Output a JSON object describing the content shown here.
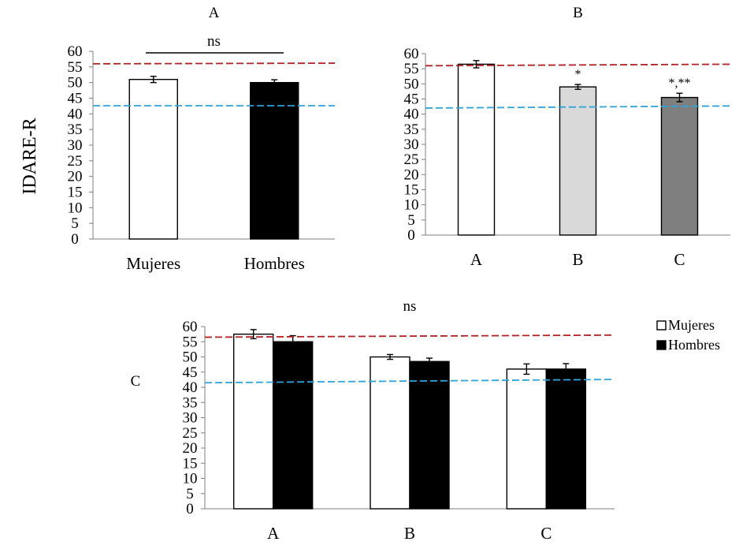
{
  "figure": {
    "ylabel": "IDARE-R",
    "reference_lines": [
      {
        "name": "upper",
        "color": "#b22222"
      },
      {
        "name": "lower",
        "color": "#2ea3dc"
      }
    ]
  },
  "chart_data": [
    {
      "id": "A",
      "type": "bar",
      "title": "A",
      "ylabel": "IDARE-R",
      "categories": [
        "Mujeres",
        "Hombres"
      ],
      "values": [
        51,
        50
      ],
      "errors": [
        1.0,
        0.9
      ],
      "colors": [
        "#ffffff",
        "#000000"
      ],
      "ylim": [
        0,
        60
      ],
      "yticks": [
        0,
        5,
        10,
        15,
        20,
        25,
        30,
        35,
        40,
        45,
        50,
        55,
        60
      ],
      "ref_lines": [
        {
          "from": 56,
          "to": 56.2,
          "color": "#b22222"
        },
        {
          "from": 42.6,
          "to": 42.6,
          "color": "#2ea3dc"
        }
      ],
      "significance": {
        "label": "ns"
      },
      "grid": false
    },
    {
      "id": "B",
      "type": "bar",
      "title": "B",
      "categories": [
        "A",
        "B",
        "C"
      ],
      "values": [
        56.5,
        49,
        45.5
      ],
      "errors": [
        1.2,
        0.8,
        1.4
      ],
      "colors": [
        "#ffffff",
        "#d9d9d9",
        "#7f7f7f"
      ],
      "bar_labels": [
        "",
        "*",
        "*,**"
      ],
      "ylim": [
        0,
        60
      ],
      "yticks": [
        0,
        5,
        10,
        15,
        20,
        25,
        30,
        35,
        40,
        45,
        50,
        55,
        60
      ],
      "ref_lines": [
        {
          "from": 56,
          "to": 56.5,
          "color": "#b22222"
        },
        {
          "from": 42,
          "to": 42.7,
          "color": "#2ea3dc"
        }
      ],
      "grid": false
    },
    {
      "id": "C",
      "type": "bar",
      "title": "ns",
      "side_label": "C",
      "categories": [
        "A",
        "B",
        "C"
      ],
      "series": [
        {
          "name": "Mujeres",
          "color": "#ffffff",
          "values": [
            57.5,
            50,
            46
          ],
          "errors": [
            1.5,
            0.8,
            1.7
          ]
        },
        {
          "name": "Hombres",
          "color": "#000000",
          "values": [
            55,
            48.5,
            46
          ],
          "errors": [
            2.0,
            1.1,
            1.8
          ]
        }
      ],
      "ylim": [
        0,
        60
      ],
      "yticks": [
        0,
        5,
        10,
        15,
        20,
        25,
        30,
        35,
        40,
        45,
        50,
        55,
        60
      ],
      "ref_lines": [
        {
          "from": 56.5,
          "to": 57.2,
          "color": "#b22222"
        },
        {
          "from": 41.5,
          "to": 42.6,
          "color": "#2ea3dc"
        }
      ],
      "legend": "top-right",
      "grid": false
    }
  ]
}
